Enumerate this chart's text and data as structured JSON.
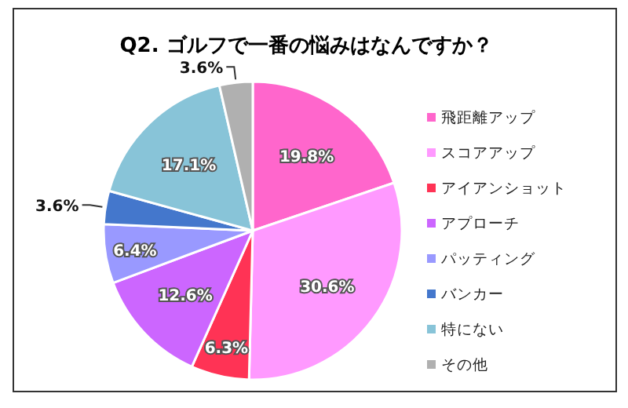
{
  "chart_data": {
    "type": "pie",
    "title": "Q2. ゴルフで一番の悩みはなんですか？",
    "categories": [
      "飛距離アップ",
      "スコアアップ",
      "アイアンショット",
      "アプローチ",
      "パッティング",
      "バンカー",
      "特にない",
      "その他"
    ],
    "values": [
      19.8,
      30.6,
      6.3,
      12.6,
      6.4,
      3.6,
      17.1,
      3.6
    ],
    "colors": [
      "#ff66cc",
      "#ff99ff",
      "#ff3355",
      "#cc66ff",
      "#9999ff",
      "#4477cc",
      "#88c4d8",
      "#b0b0b0"
    ],
    "value_labels": [
      "19.8%",
      "30.6%",
      "6.3%",
      "12.6%",
      "6.4%",
      "3.6%",
      "17.1%",
      "3.6%"
    ],
    "legend": "right"
  }
}
